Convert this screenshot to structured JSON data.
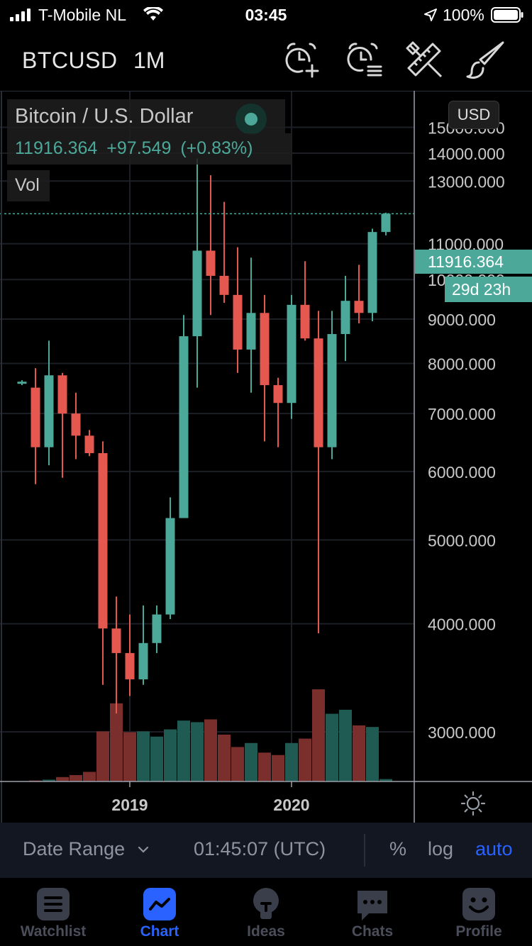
{
  "status_bar": {
    "carrier": "T-Mobile NL",
    "time": "03:45",
    "battery": "100%"
  },
  "toolbar": {
    "symbol": "BTCUSD",
    "interval": "1M",
    "icons": [
      "alarm-add-icon",
      "alarm-list-icon",
      "drawing-tools-icon",
      "brush-icon"
    ]
  },
  "legend": {
    "title": "Bitcoin / U.S. Dollar",
    "last": "11916.364",
    "change": "+97.549",
    "change_pct": "(+0.83%)",
    "vol_label": "Vol"
  },
  "currency": "USD",
  "price_tag": "11916.364",
  "countdown_tag": "29d 23h",
  "colors": {
    "up": "#4ca99a",
    "down": "#e4584f",
    "up_vol": "#1f5b52",
    "down_vol": "#7a2f2c",
    "accent": "#2962ff"
  },
  "chart_data": {
    "type": "candlestick",
    "interval": "1M",
    "y_scale": "log",
    "y_ticks": [
      "15000.000",
      "14000.000",
      "13000.000",
      "11000.000",
      "10000.000",
      "9000.000",
      "8000.000",
      "7000.000",
      "6000.000",
      "5000.000",
      "4000.000",
      "3000.000"
    ],
    "x_ticks": [
      "2019",
      "2020"
    ],
    "candles": [
      {
        "o": 7600,
        "h": 7650,
        "l": 7550,
        "c": 7620,
        "v": 0.1
      },
      {
        "o": 7500,
        "h": 7900,
        "l": 5800,
        "c": 6400,
        "v": 0.25
      },
      {
        "o": 6400,
        "h": 8500,
        "l": 6100,
        "c": 7750,
        "v": 0.45
      },
      {
        "o": 7750,
        "h": 7800,
        "l": 5900,
        "c": 7000,
        "v": 1.1
      },
      {
        "o": 7000,
        "h": 7400,
        "l": 6200,
        "c": 6600,
        "v": 1.6
      },
      {
        "o": 6600,
        "h": 6700,
        "l": 6250,
        "c": 6300,
        "v": 2.4
      },
      {
        "o": 6300,
        "h": 6500,
        "l": 3400,
        "c": 3950,
        "v": 12.5
      },
      {
        "o": 3950,
        "h": 4300,
        "l": 3150,
        "c": 3700,
        "v": 19.5
      },
      {
        "o": 3700,
        "h": 4100,
        "l": 3300,
        "c": 3450,
        "v": 12.3
      },
      {
        "o": 3450,
        "h": 4200,
        "l": 3400,
        "c": 3800,
        "v": 12.5
      },
      {
        "o": 3800,
        "h": 4200,
        "l": 3700,
        "c": 4100,
        "v": 11.2
      },
      {
        "o": 4100,
        "h": 5600,
        "l": 4050,
        "c": 5300,
        "v": 13.0
      },
      {
        "o": 5300,
        "h": 9100,
        "l": 5300,
        "c": 8600,
        "v": 15.2
      },
      {
        "o": 8600,
        "h": 13800,
        "l": 7500,
        "c": 10800,
        "v": 14.8
      },
      {
        "o": 10800,
        "h": 13200,
        "l": 9100,
        "c": 10100,
        "v": 15.5
      },
      {
        "o": 10100,
        "h": 12300,
        "l": 9400,
        "c": 9600,
        "v": 11.7
      },
      {
        "o": 9600,
        "h": 10900,
        "l": 7800,
        "c": 8300,
        "v": 8.6
      },
      {
        "o": 8300,
        "h": 10600,
        "l": 7400,
        "c": 9150,
        "v": 9.6
      },
      {
        "o": 9150,
        "h": 9600,
        "l": 6500,
        "c": 7550,
        "v": 7.2
      },
      {
        "o": 7550,
        "h": 7700,
        "l": 6400,
        "c": 7200,
        "v": 6.6
      },
      {
        "o": 7200,
        "h": 9600,
        "l": 6900,
        "c": 9350,
        "v": 9.6
      },
      {
        "o": 9350,
        "h": 10500,
        "l": 8500,
        "c": 8550,
        "v": 10.7
      },
      {
        "o": 8550,
        "h": 9200,
        "l": 3900,
        "c": 6400,
        "v": 23.0
      },
      {
        "o": 6400,
        "h": 9200,
        "l": 6200,
        "c": 8650,
        "v": 16.9
      },
      {
        "o": 8650,
        "h": 10100,
        "l": 8050,
        "c": 9450,
        "v": 17.9
      },
      {
        "o": 9450,
        "h": 10400,
        "l": 8900,
        "c": 9150,
        "v": 14.0
      },
      {
        "o": 9150,
        "h": 11450,
        "l": 8950,
        "c": 11350,
        "v": 13.6
      },
      {
        "o": 11350,
        "h": 11950,
        "l": 11250,
        "c": 11916,
        "v": 0.6
      }
    ]
  },
  "control_bar": {
    "date_range": "Date Range",
    "time": "01:45:07 (UTC)",
    "percent": "%",
    "log": "log",
    "auto": "auto"
  },
  "tabs": [
    {
      "label": "Watchlist",
      "icon": "list-icon",
      "active": false
    },
    {
      "label": "Chart",
      "icon": "chart-icon",
      "active": true
    },
    {
      "label": "Ideas",
      "icon": "lightbulb-icon",
      "active": false
    },
    {
      "label": "Chats",
      "icon": "chat-icon",
      "active": false
    },
    {
      "label": "Profile",
      "icon": "smiley-icon",
      "active": false
    }
  ]
}
